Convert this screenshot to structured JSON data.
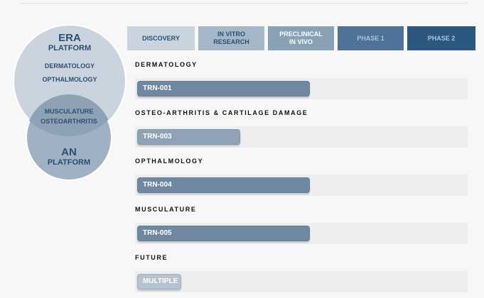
{
  "venn": {
    "era_title": "ERA",
    "era_subtitle": "PLATFORM",
    "era_items": [
      "DERMATOLOGY",
      "OPTHALMOLOGY"
    ],
    "overlap_items": [
      "MUSCULATURE",
      "OSTEOARTHRITIS"
    ],
    "an_title": "AN",
    "an_subtitle": "PLATFORM"
  },
  "phases": [
    {
      "label": "DISCOVERY",
      "bg": "#c9d4df",
      "fg": "#2b4f73"
    },
    {
      "label": "IN VITRO\nRESEARCH",
      "bg": "#a6b7c8",
      "fg": "#2b4f73"
    },
    {
      "label": "PRECLINICAL\nIN VIVO",
      "bg": "#8aa0b5",
      "fg": "#ffffff"
    },
    {
      "label": "PHASE 1",
      "bg": "#4f7398",
      "fg": "#a9c3dc"
    },
    {
      "label": "PHASE 2",
      "bg": "#2c587f",
      "fg": "#a9c3dc"
    }
  ],
  "chart_data": {
    "type": "bar",
    "stages": [
      "DISCOVERY",
      "IN VITRO RESEARCH",
      "PRECLINICAL IN VIVO",
      "PHASE 1",
      "PHASE 2"
    ],
    "rows": [
      {
        "category": "DERMATOLOGY",
        "candidate": "TRN-001",
        "progress_stage": 2.5,
        "color": "#6f87a1"
      },
      {
        "category": "OSTEO-ARTHRITIS & CARTILAGE DAMAGE",
        "candidate": "TRN-003",
        "progress_stage": 1.5,
        "color": "#8ea2b8"
      },
      {
        "category": "OPTHALMOLOGY",
        "candidate": "TRN-004",
        "progress_stage": 2.5,
        "color": "#6f87a1"
      },
      {
        "category": "MUSCULATURE",
        "candidate": "TRN-005",
        "progress_stage": 2.5,
        "color": "#6f87a1"
      },
      {
        "category": "FUTURE",
        "candidate": "MULTIPLE",
        "progress_stage": 0.65,
        "color": "#b5c2d0"
      }
    ]
  }
}
